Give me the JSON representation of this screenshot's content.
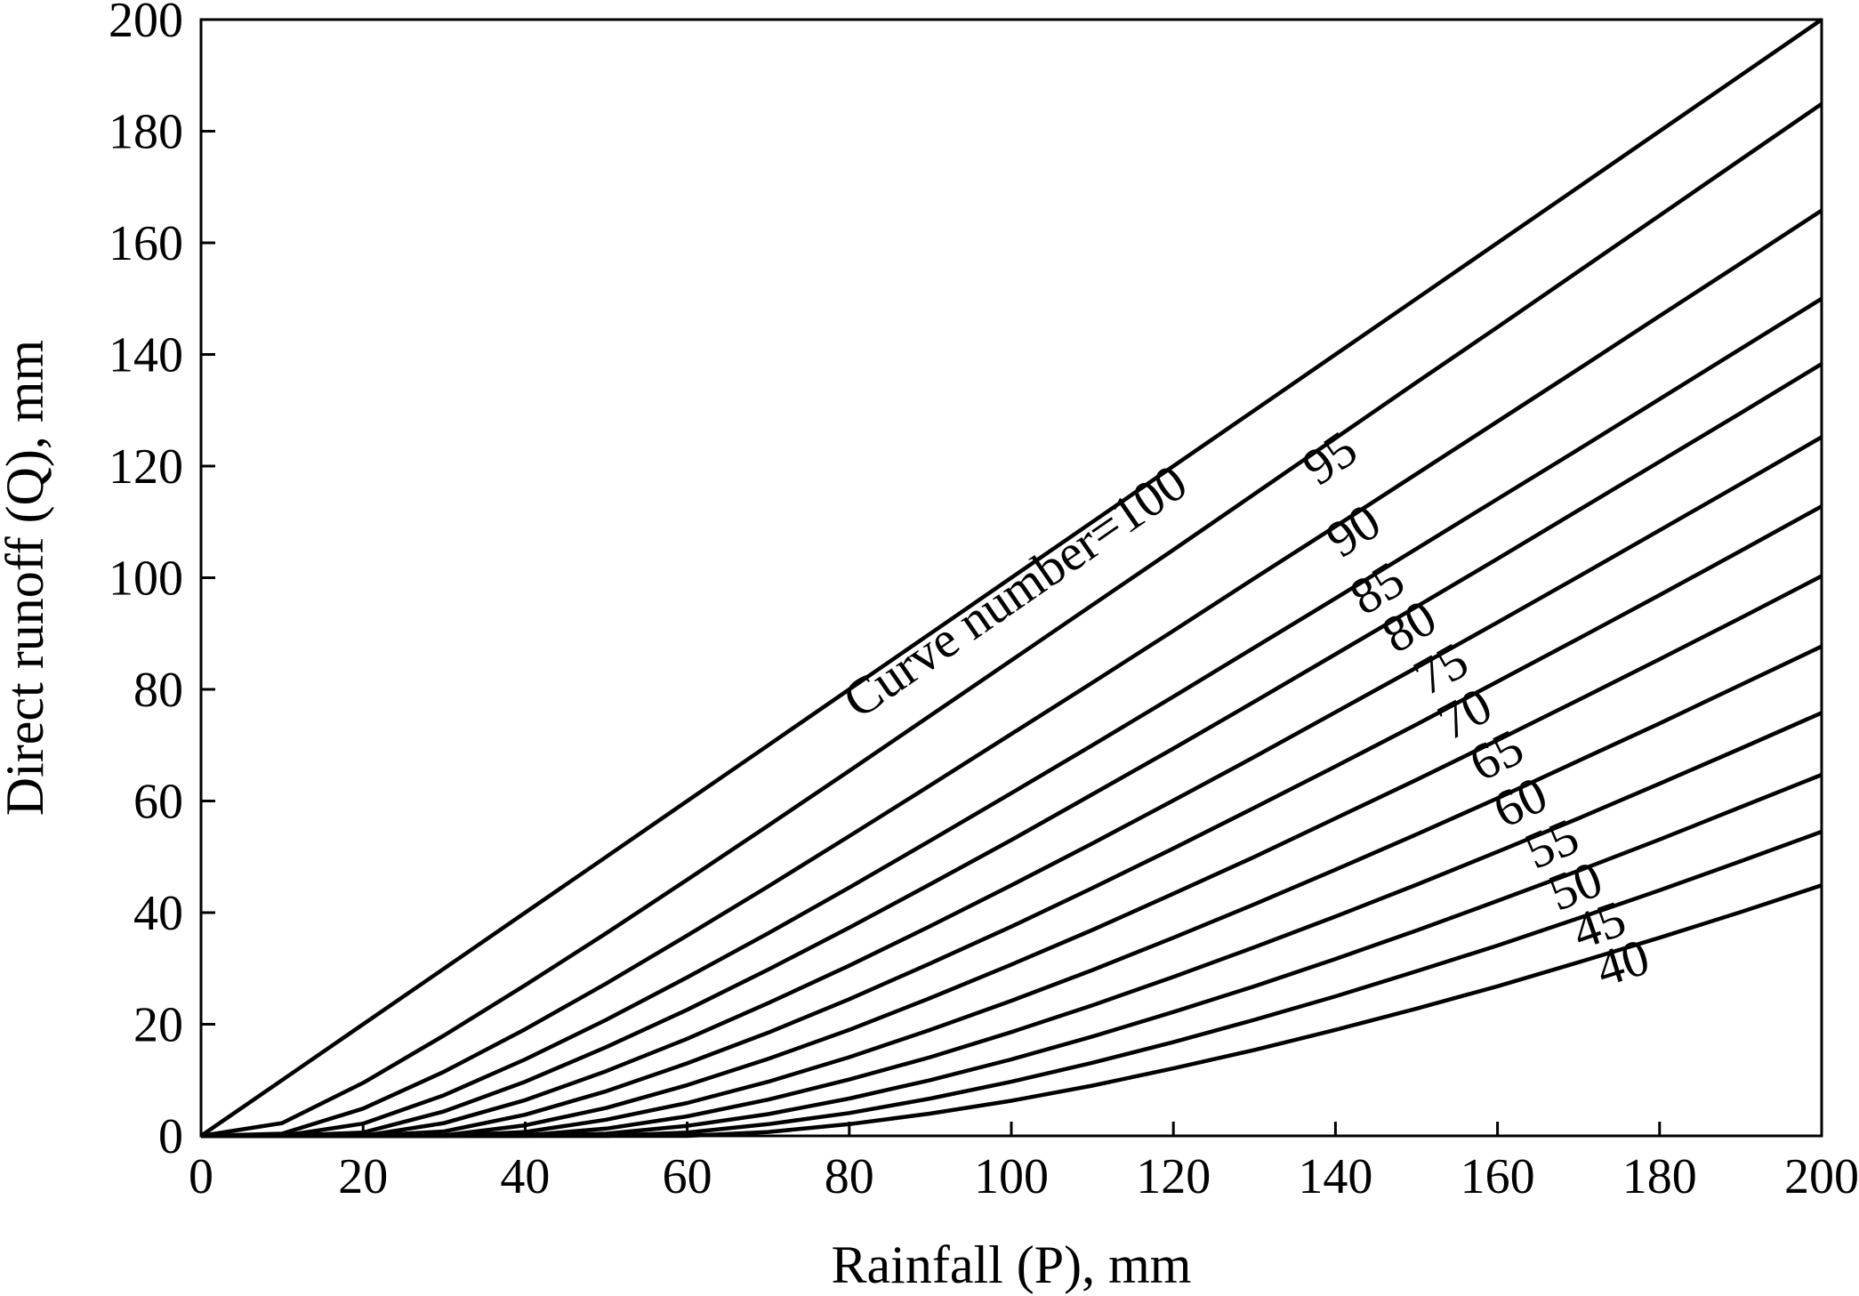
{
  "chart_data": {
    "type": "line",
    "title": "",
    "xlabel": "Rainfall (P), mm",
    "ylabel": "Direct runoff (Q), mm",
    "xlim": [
      0,
      200
    ],
    "ylim": [
      0,
      200
    ],
    "x_ticks": [
      "0",
      "20",
      "40",
      "60",
      "80",
      "100",
      "120",
      "140",
      "160",
      "180",
      "200"
    ],
    "y_ticks": [
      "0",
      "20",
      "40",
      "60",
      "80",
      "100",
      "120",
      "140",
      "160",
      "180",
      "200"
    ],
    "grid": false,
    "legend": "none",
    "line_color": "#000000",
    "x": [
      0,
      10,
      20,
      30,
      40,
      50,
      60,
      70,
      80,
      90,
      100,
      110,
      120,
      130,
      140,
      150,
      160,
      170,
      180,
      190,
      200
    ],
    "series": [
      {
        "name": "Curve number=100",
        "label": "Curve number=100",
        "label_at": 120,
        "values": [
          0,
          10,
          20,
          30,
          40,
          50,
          60,
          70,
          80,
          90,
          100,
          110,
          120,
          130,
          140,
          150,
          160,
          170,
          180,
          190,
          200
        ]
      },
      {
        "name": "95",
        "label": "95",
        "label_at": 141,
        "values": [
          0,
          2.3,
          9.5,
          18.0,
          27.0,
          36.3,
          45.9,
          55.6,
          65.4,
          75.3,
          85.2,
          95.1,
          105.0,
          115.0,
          125.0,
          135.0,
          144.9,
          154.9,
          164.9,
          174.9,
          184.9
        ]
      },
      {
        "name": "90",
        "label": "90",
        "label_at": 144,
        "values": [
          0,
          0.4,
          4.9,
          11.5,
          19.1,
          27.3,
          35.9,
          44.7,
          53.7,
          62.8,
          72.0,
          81.2,
          90.5,
          99.9,
          109.2,
          118.6,
          128.0,
          137.4,
          146.9,
          156.3,
          165.8
        ]
      },
      {
        "name": "85",
        "label": "85",
        "label_at": 147,
        "values": [
          0,
          0,
          2.2,
          7.3,
          13.7,
          20.8,
          28.4,
          36.3,
          44.5,
          52.9,
          61.4,
          70.0,
          78.7,
          87.5,
          96.3,
          105.2,
          114.1,
          123.0,
          132.0,
          141.0,
          150.0
        ]
      },
      {
        "name": "80",
        "label": "80",
        "label_at": 151,
        "values": [
          0,
          0,
          0.6,
          4.4,
          9.7,
          15.9,
          22.6,
          29.8,
          37.3,
          45.1,
          53.0,
          61.2,
          69.4,
          77.8,
          86.3,
          94.8,
          103.4,
          112.1,
          120.8,
          129.5,
          138.3
        ]
      },
      {
        "name": "75",
        "label": "75",
        "label_at": 155,
        "values": [
          0,
          0,
          0,
          2.3,
          6.4,
          11.6,
          17.4,
          23.8,
          30.5,
          37.6,
          44.9,
          52.4,
          60.1,
          67.9,
          75.9,
          83.9,
          92.0,
          100.2,
          108.5,
          116.8,
          125.2
        ]
      },
      {
        "name": "70",
        "label": "70",
        "label_at": 158,
        "values": [
          0,
          0,
          0,
          0.8,
          3.8,
          8.0,
          13.0,
          18.5,
          24.5,
          30.9,
          37.5,
          44.4,
          51.5,
          58.8,
          66.2,
          73.7,
          81.4,
          89.1,
          96.9,
          104.8,
          112.8
        ]
      },
      {
        "name": "65",
        "label": "65",
        "label_at": 162,
        "values": [
          0,
          0,
          0,
          0.1,
          1.9,
          5.0,
          9.1,
          13.8,
          19.0,
          24.7,
          30.7,
          36.9,
          43.4,
          50.0,
          56.9,
          63.8,
          70.9,
          78.1,
          85.4,
          92.8,
          100.3
        ]
      },
      {
        "name": "60",
        "label": "60",
        "label_at": 165,
        "values": [
          0,
          0,
          0,
          0,
          0.7,
          2.9,
          5.9,
          9.7,
          14.1,
          19.0,
          24.2,
          29.7,
          35.5,
          41.5,
          47.7,
          54.0,
          60.5,
          67.2,
          73.9,
          80.8,
          87.7
        ]
      },
      {
        "name": "55",
        "label": "55",
        "label_at": 169,
        "values": [
          0,
          0,
          0,
          0,
          0.1,
          1.3,
          3.5,
          6.5,
          10.1,
          14.1,
          18.6,
          23.4,
          28.5,
          33.8,
          39.3,
          45.0,
          50.9,
          56.9,
          63.1,
          69.4,
          75.8
        ]
      },
      {
        "name": "50",
        "label": "50",
        "label_at": 172,
        "values": [
          0,
          0,
          0,
          0,
          0,
          0.4,
          1.8,
          3.9,
          6.7,
          10.0,
          13.7,
          17.8,
          22.2,
          26.8,
          31.7,
          36.8,
          42.1,
          47.5,
          53.1,
          58.9,
          64.7
        ]
      },
      {
        "name": "45",
        "label": "45",
        "label_at": 175,
        "values": [
          0,
          0,
          0,
          0,
          0,
          0,
          0.6,
          2.1,
          4.1,
          6.7,
          9.7,
          13.1,
          16.8,
          20.8,
          25.0,
          29.5,
          34.1,
          39.0,
          44.0,
          49.2,
          54.5
        ]
      },
      {
        "name": "40",
        "label": "40",
        "label_at": 178,
        "values": [
          0,
          0,
          0,
          0,
          0,
          0,
          0,
          0.7,
          2.1,
          4.0,
          6.3,
          9.0,
          12.1,
          15.4,
          19.0,
          22.8,
          26.8,
          31.1,
          35.5,
          40.1,
          44.9
        ]
      }
    ]
  }
}
